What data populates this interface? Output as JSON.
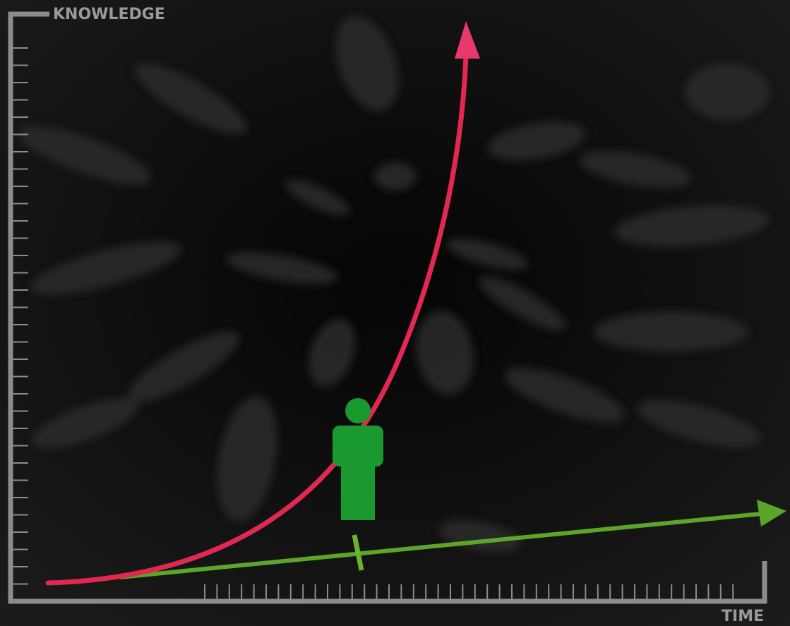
{
  "axis_labels": {
    "y": "KNOWLEDGE",
    "x": "TIME"
  }
}
